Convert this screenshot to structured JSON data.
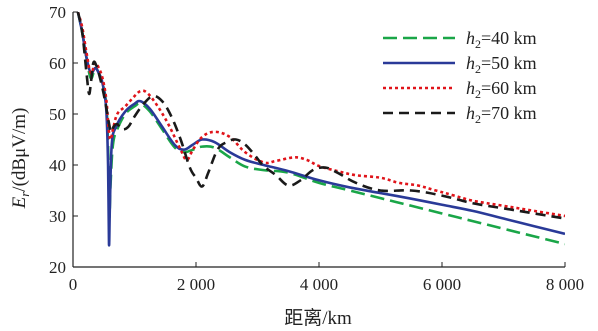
{
  "chart_data": {
    "type": "line",
    "xlabel": "距离/km",
    "ylabel_parts": {
      "main": "E",
      "sub": "r",
      "unit": "/(dBμV/m)"
    },
    "xlim": [
      0,
      8000
    ],
    "ylim": [
      20,
      70
    ],
    "xticks": [
      0,
      2000,
      4000,
      6000,
      8000
    ],
    "xtick_labels": [
      "0",
      "2 000",
      "4 000",
      "6 000",
      "8 000"
    ],
    "yticks": [
      20,
      30,
      40,
      50,
      60,
      70
    ],
    "ytick_labels": [
      "20",
      "30",
      "40",
      "50",
      "60",
      "70"
    ],
    "grid": false,
    "legend_placement": "top-right",
    "series": [
      {
        "name_main": "h",
        "name_sub": "2",
        "name_rest": "=40 km",
        "color": "#1aa648",
        "dash": "long-dash",
        "x": [
          80,
          150,
          220,
          290,
          360,
          420,
          480,
          540,
          570,
          590,
          610,
          650,
          720,
          850,
          1000,
          1100,
          1250,
          1450,
          1650,
          1800,
          1950,
          2100,
          2300,
          2550,
          2800,
          3100,
          3500,
          4000,
          4500,
          5000,
          5500,
          6000,
          6500,
          7000,
          7500,
          8000
        ],
        "y": [
          70,
          66,
          61,
          57,
          59,
          58,
          56,
          52,
          44,
          30,
          36,
          44,
          47,
          50,
          51.5,
          52,
          50.5,
          47,
          43.5,
          42.5,
          43,
          43.6,
          43.4,
          41.5,
          39.7,
          39,
          38.5,
          36.5,
          35,
          33.5,
          32,
          30.5,
          29,
          27.5,
          26,
          24.5
        ]
      },
      {
        "name_main": "h",
        "name_sub": "2",
        "name_rest": "=50 km",
        "color": "#2a3a98",
        "dash": "solid",
        "x": [
          80,
          150,
          220,
          290,
          360,
          420,
          480,
          540,
          570,
          585,
          600,
          630,
          700,
          850,
          1000,
          1100,
          1250,
          1450,
          1650,
          1800,
          1950,
          2100,
          2300,
          2550,
          2800,
          3100,
          3500,
          4000,
          4500,
          5000,
          5500,
          6000,
          6500,
          7000,
          7500,
          8000
        ],
        "y": [
          70,
          66,
          61,
          58,
          59,
          58,
          56,
          51,
          40,
          24.5,
          32,
          44,
          47.5,
          50.5,
          52,
          52.5,
          51,
          47.5,
          44,
          43,
          44,
          45,
          44.5,
          42.5,
          41,
          40,
          38.8,
          37,
          35.6,
          34.5,
          33.4,
          32.2,
          31,
          29.5,
          28,
          26.5
        ]
      },
      {
        "name_main": "h",
        "name_sub": "2",
        "name_rest": "=60 km",
        "color": "#e0141a",
        "dash": "dot",
        "x": [
          80,
          150,
          220,
          290,
          360,
          420,
          480,
          540,
          580,
          610,
          650,
          720,
          850,
          1000,
          1100,
          1200,
          1350,
          1550,
          1750,
          1850,
          1950,
          2100,
          2300,
          2550,
          2800,
          3100,
          3300,
          3600,
          3800,
          4000,
          4300,
          4600,
          5000,
          5300,
          5600,
          5900,
          6200,
          6500,
          7000,
          7500,
          8000
        ],
        "y": [
          70,
          67,
          62,
          58,
          60,
          59,
          57,
          53,
          47,
          45,
          47,
          50,
          51.5,
          53.5,
          54.5,
          54.2,
          52,
          48,
          43,
          41,
          43,
          45.5,
          46.5,
          45.5,
          42.5,
          40.5,
          40.8,
          41.5,
          41,
          39.8,
          38.8,
          38,
          37.5,
          36.5,
          36,
          35,
          34,
          33,
          32,
          31,
          30
        ]
      },
      {
        "name_main": "h",
        "name_sub": "2",
        "name_rest": "=70 km",
        "color": "#1a1a1a",
        "dash": "dash",
        "x": [
          80,
          150,
          220,
          260,
          290,
          330,
          380,
          430,
          480,
          530,
          580,
          620,
          660,
          720,
          800,
          900,
          1000,
          1150,
          1300,
          1450,
          1600,
          1750,
          1900,
          2000,
          2100,
          2200,
          2350,
          2500,
          2650,
          2800,
          2950,
          3100,
          3300,
          3500,
          3700,
          3900,
          4100,
          4300,
          4600,
          5000,
          5500,
          6000,
          6500,
          7000,
          7500,
          8000
        ],
        "y": [
          70,
          66,
          58,
          54,
          56,
          60,
          59.5,
          57.5,
          55,
          52,
          48.5,
          46.5,
          47.5,
          48,
          47,
          47.5,
          49.5,
          52,
          53.5,
          52.5,
          49.5,
          45,
          39.5,
          37.5,
          35.8,
          38.5,
          43,
          44.5,
          45,
          44,
          42,
          39.8,
          38,
          36,
          37,
          39,
          39.5,
          38.5,
          36.5,
          35,
          35,
          34,
          32.5,
          31.5,
          30.5,
          29.5
        ]
      }
    ]
  }
}
